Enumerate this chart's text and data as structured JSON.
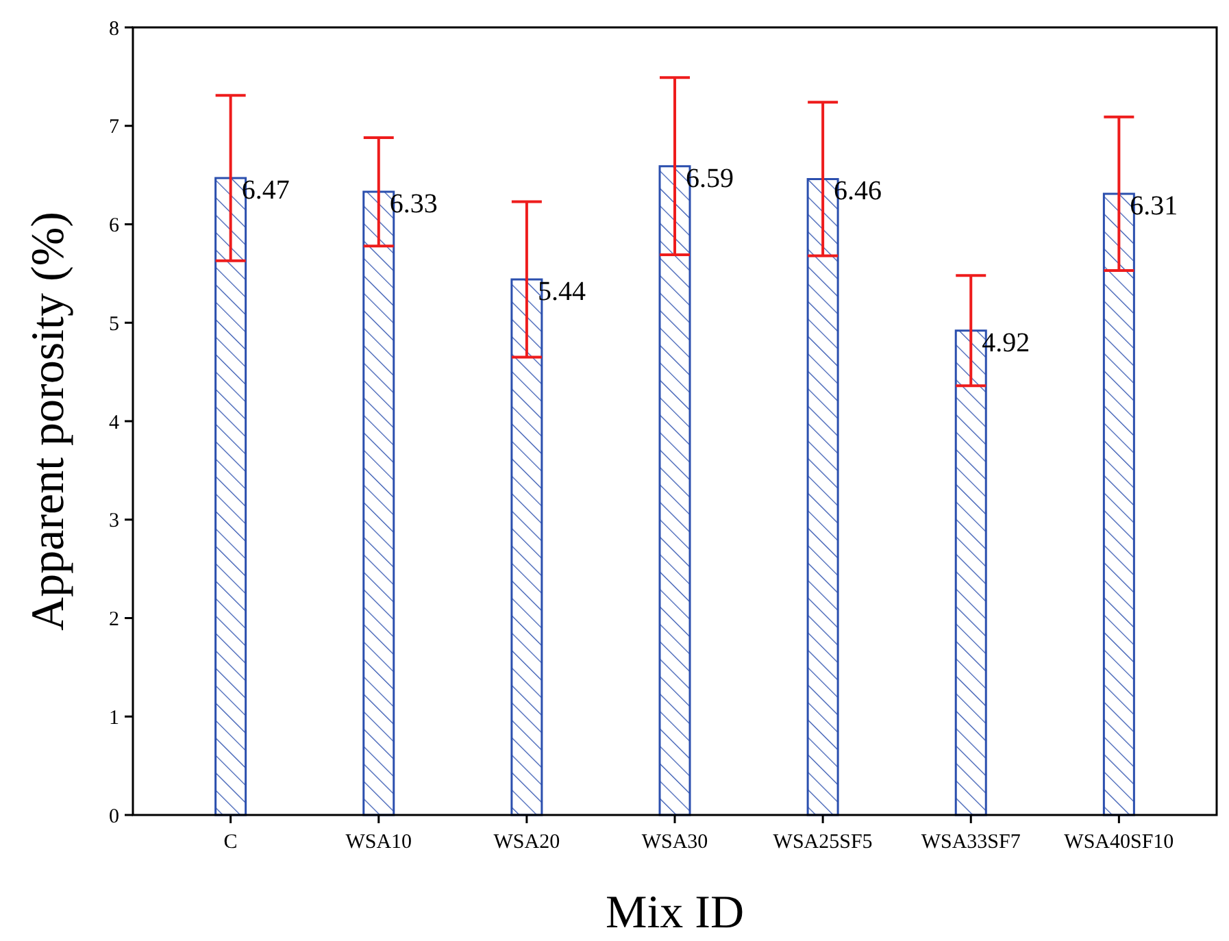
{
  "chart_data": {
    "type": "bar",
    "xlabel": "Mix ID",
    "ylabel": "Apparent porosity (%)",
    "categories": [
      "C",
      "WSA10",
      "WSA20",
      "WSA30",
      "WSA25SF5",
      "WSA33SF7",
      "WSA40SF10"
    ],
    "values": [
      6.47,
      6.33,
      5.44,
      6.59,
      6.46,
      4.92,
      6.31
    ],
    "errors": [
      0.84,
      0.55,
      0.79,
      0.9,
      0.78,
      0.56,
      0.78
    ],
    "color": "#2b4fae",
    "data_labels": true,
    "grid": false,
    "ylim": [
      0,
      8
    ],
    "yticks": [
      0,
      1,
      2,
      3,
      4,
      5,
      6,
      7,
      8
    ]
  }
}
